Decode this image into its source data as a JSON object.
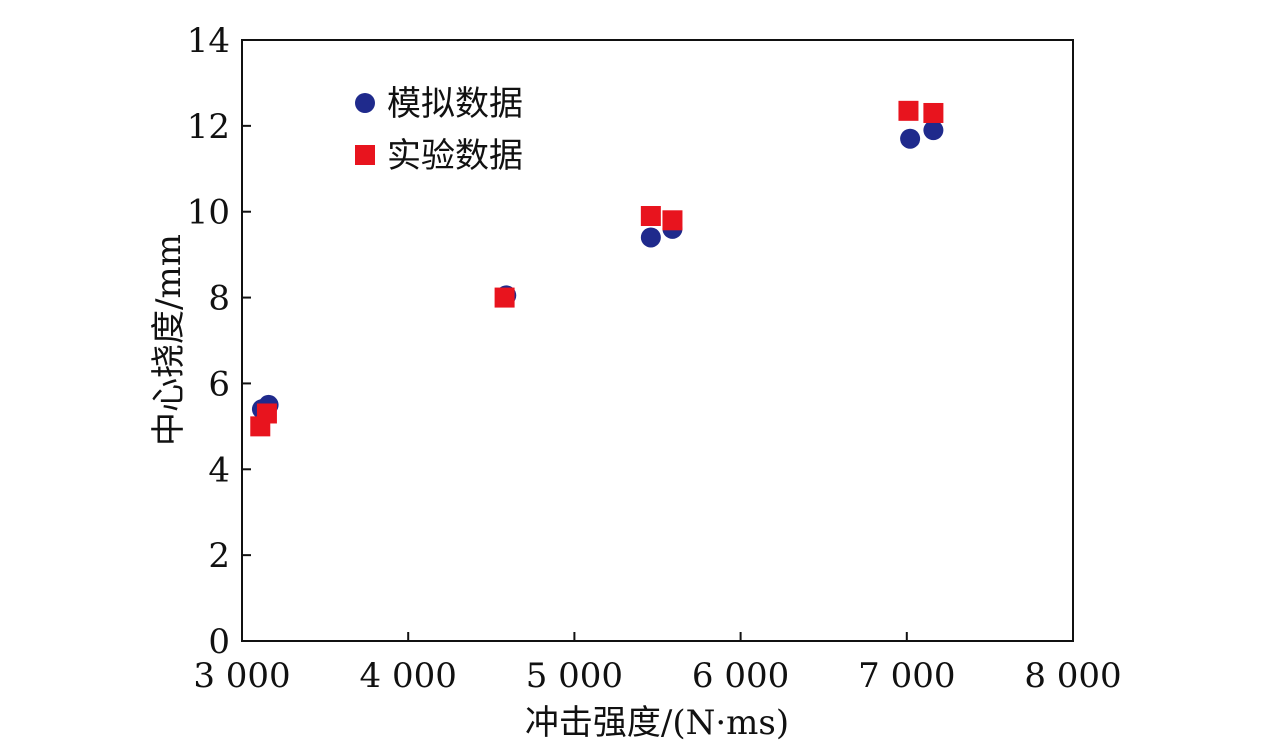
{
  "chart_data": {
    "type": "scatter",
    "xlabel": "冲击强度/(N·ms)",
    "ylabel": "中心挠度/mm",
    "xlim": [
      3000,
      8000
    ],
    "ylim": [
      0,
      14
    ],
    "xticks": [
      3000,
      4000,
      5000,
      6000,
      7000,
      8000
    ],
    "xtick_labels": [
      "3 000",
      "4 000",
      "5 000",
      "6 000",
      "7 000",
      "8 000"
    ],
    "yticks": [
      0,
      2,
      4,
      6,
      8,
      10,
      12,
      14
    ],
    "ytick_labels": [
      "0",
      "2",
      "4",
      "6",
      "8",
      "10",
      "12",
      "14"
    ],
    "grid": false,
    "legend_position": "top-left",
    "series": [
      {
        "name": "模拟数据",
        "marker": "circle",
        "color": "#1f2a8c",
        "x": [
          3120,
          3160,
          4590,
          5460,
          5590,
          7020,
          7160
        ],
        "y": [
          5.4,
          5.5,
          8.05,
          9.4,
          9.6,
          11.7,
          11.9
        ]
      },
      {
        "name": "实验数据",
        "marker": "square",
        "color": "#e8141e",
        "x": [
          3110,
          3150,
          4580,
          5460,
          5590,
          7010,
          7160
        ],
        "y": [
          5.0,
          5.3,
          8.0,
          9.9,
          9.8,
          12.35,
          12.3
        ]
      }
    ]
  }
}
